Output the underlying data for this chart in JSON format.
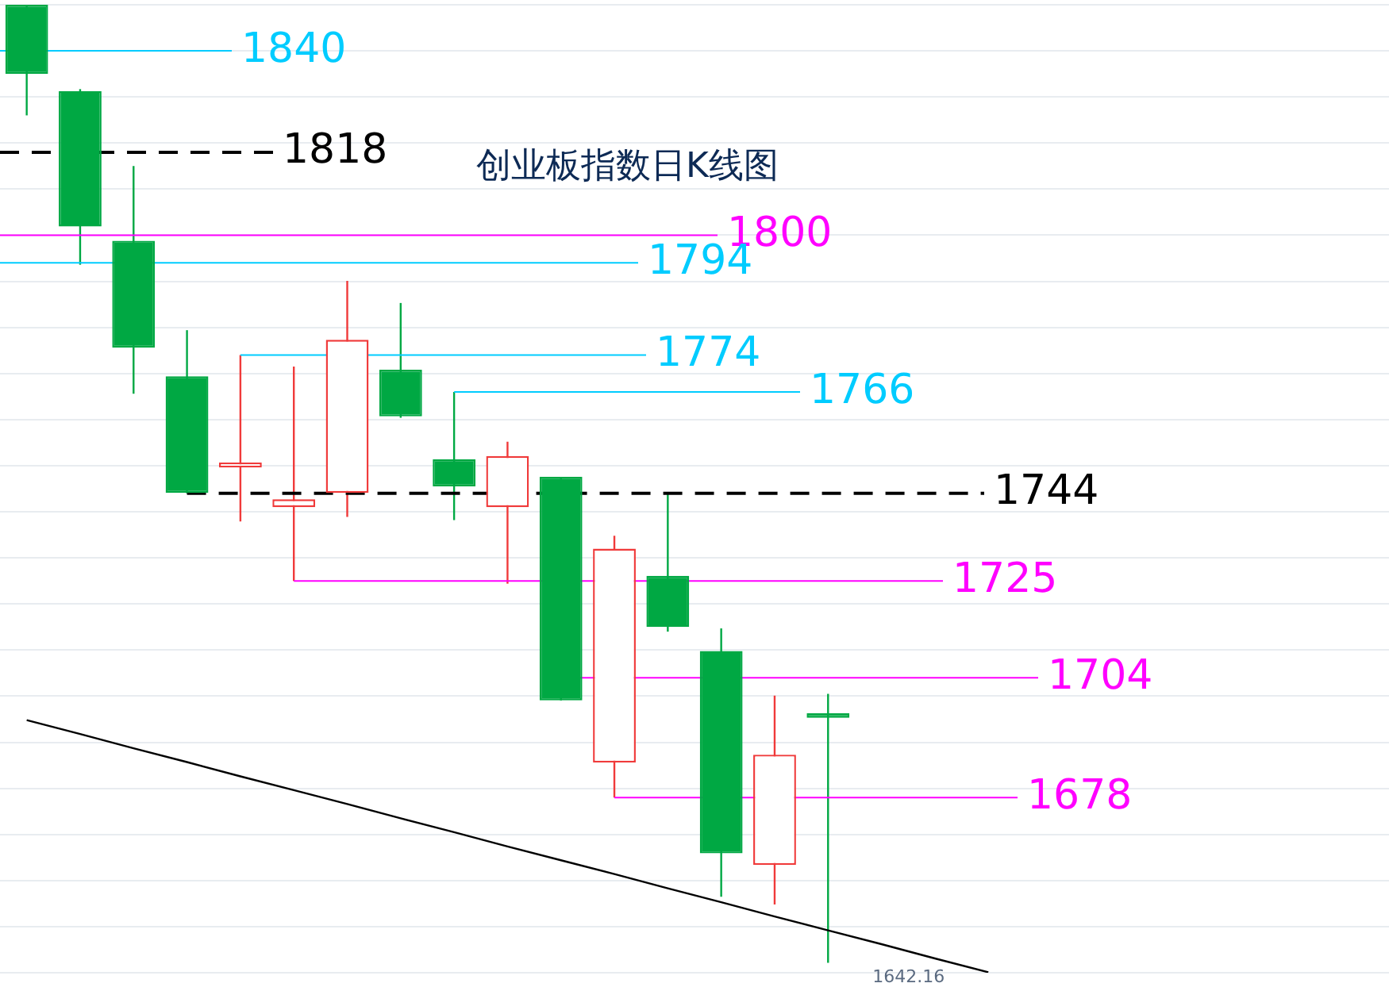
{
  "chart_data": {
    "type": "candlestick",
    "title": "创业板指数日K线图",
    "categories": [
      null,
      null,
      null,
      null,
      null,
      null,
      null,
      null,
      null,
      null,
      null,
      null,
      null,
      null,
      null,
      null,
      null,
      null,
      null,
      null,
      null,
      null,
      null,
      null,
      null,
      null
    ],
    "ohlc": [
      [
        1850,
        1850,
        1826,
        1835
      ],
      [
        1831.3,
        1831.7,
        1793.6,
        1801.9
      ],
      [
        1798.8,
        1815,
        1765.6,
        1775.6
      ],
      [
        1769.4,
        1779.4,
        1744,
        1744.1
      ],
      [
        1749.6,
        1774,
        1737.9,
        1750.7
      ],
      [
        1741,
        1771.5,
        1725,
        1742.7
      ],
      [
        1744.1,
        1790.1,
        1738.9,
        1777.3
      ],
      [
        1770.8,
        1785.3,
        1760.4,
        1760.7
      ],
      [
        1751.4,
        1766,
        1738.2,
        1745.5
      ],
      [
        1741,
        1755.2,
        1724.4,
        1752.1
      ],
      [
        1747.6,
        1747.6,
        1699.1,
        1699.1
      ],
      [
        1685.6,
        1734.8,
        1678,
        1732
      ],
      [
        1726.1,
        1744,
        1714,
        1715
      ],
      [
        1709.8,
        1714.7,
        1656.5,
        1665.9
      ],
      [
        1663.4,
        1700.1,
        1654.8,
        1687.3
      ],
      [
        1696.3,
        1700.5,
        1642.16,
        1695.3
      ],
      null,
      null,
      null,
      null,
      null,
      null,
      null,
      null,
      null,
      null
    ],
    "series": [
      {
        "type": "line",
        "color": "#000000",
        "values": [
          1694.8,
          1691.8,
          1688.7,
          1685.7,
          1682.6,
          1679.6,
          1676.6,
          1673.5,
          1670.5,
          1667.4,
          1664.4,
          1661.4,
          1658.3,
          1655.3,
          1652.2,
          1649.2,
          1646.2,
          1643.1,
          1640.1,
          null,
          null,
          null,
          null,
          null,
          null,
          null
        ]
      }
    ],
    "ylim": [
      1640,
      1850
    ],
    "yticks": [
      {
        "value": 1640,
        "label": null
      },
      {
        "value": 1650,
        "label": null
      },
      {
        "value": 1660,
        "label": null
      },
      {
        "value": 1670,
        "label": null
      },
      {
        "value": 1680,
        "label": null
      },
      {
        "value": 1690,
        "label": null
      },
      {
        "value": 1700,
        "label": null
      },
      {
        "value": 1710,
        "label": null
      },
      {
        "value": 1720,
        "label": null
      },
      {
        "value": 1730,
        "label": null
      },
      {
        "value": 1740,
        "label": null
      },
      {
        "value": 1750,
        "label": null
      },
      {
        "value": 1760,
        "label": null
      },
      {
        "value": 1770,
        "label": null
      },
      {
        "value": 1780,
        "label": null
      },
      {
        "value": 1790,
        "label": null
      },
      {
        "value": 1800,
        "label": null
      },
      {
        "value": 1810,
        "label": null
      },
      {
        "value": 1820,
        "label": null
      },
      {
        "value": 1830,
        "label": null
      },
      {
        "value": 1840,
        "label": null
      },
      {
        "value": 1850,
        "label": null
      }
    ],
    "grid": "y",
    "legend": false,
    "ref_lines": [
      {
        "axis": "y",
        "value": 1840,
        "label": "1840",
        "color": "#00ccff",
        "line_style": "solid"
      },
      {
        "axis": "y",
        "value": 1818,
        "label": "1818",
        "color": "#000000",
        "line_style": "dashed"
      },
      {
        "axis": "y",
        "value": 1800,
        "label": "1800",
        "color": "#ff00ff",
        "line_style": "solid"
      },
      {
        "axis": "y",
        "value": 1794,
        "label": "1794",
        "color": "#00ccff",
        "line_style": "solid"
      },
      {
        "axis": "y",
        "value": 1774,
        "label": "1774",
        "color": "#00ccff",
        "line_style": "solid"
      },
      {
        "axis": "y",
        "value": 1766,
        "label": "1766",
        "color": "#00ccff",
        "line_style": "solid"
      },
      {
        "axis": "y",
        "value": 1744,
        "label": "1744",
        "color": "#000000",
        "line_style": "dashed"
      },
      {
        "axis": "y",
        "value": 1725,
        "label": "1725",
        "color": "#ff00ff",
        "line_style": "solid"
      },
      {
        "axis": "y",
        "value": 1704,
        "label": "1704",
        "color": "#ff00ff",
        "line_style": "solid"
      },
      {
        "axis": "y",
        "value": 1678,
        "label": "1678",
        "color": "#ff00ff",
        "line_style": "solid"
      }
    ],
    "annotations": [
      "1642.16"
    ]
  }
}
